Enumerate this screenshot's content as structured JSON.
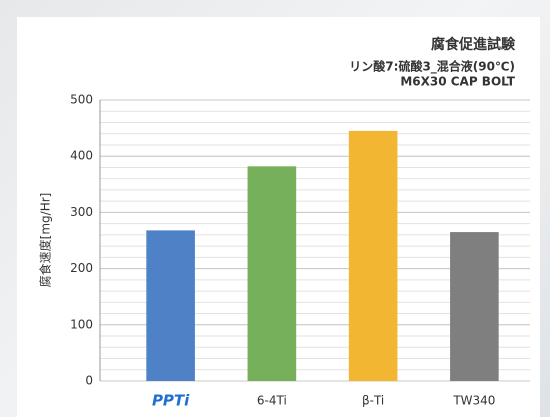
{
  "chart_data": {
    "type": "bar",
    "title": "腐食促進試験",
    "subtitle": [
      "リン酸7:硫酸3_混合液(90℃)",
      "M6X30 CAP BOLT"
    ],
    "y_label": "腐食速度[mg/Hr]",
    "categories": [
      "PPTi",
      "6-4Ti",
      "β-Ti",
      "TW340"
    ],
    "values": [
      268,
      382,
      445,
      265
    ],
    "colors": [
      "#4f81c7",
      "#77b05a",
      "#f2b632",
      "#7f7f7f"
    ],
    "ylim": [
      0,
      500
    ],
    "yticks": [
      0,
      100,
      200,
      300,
      400,
      500
    ],
    "grid": true,
    "minor_grid_step": 20
  }
}
